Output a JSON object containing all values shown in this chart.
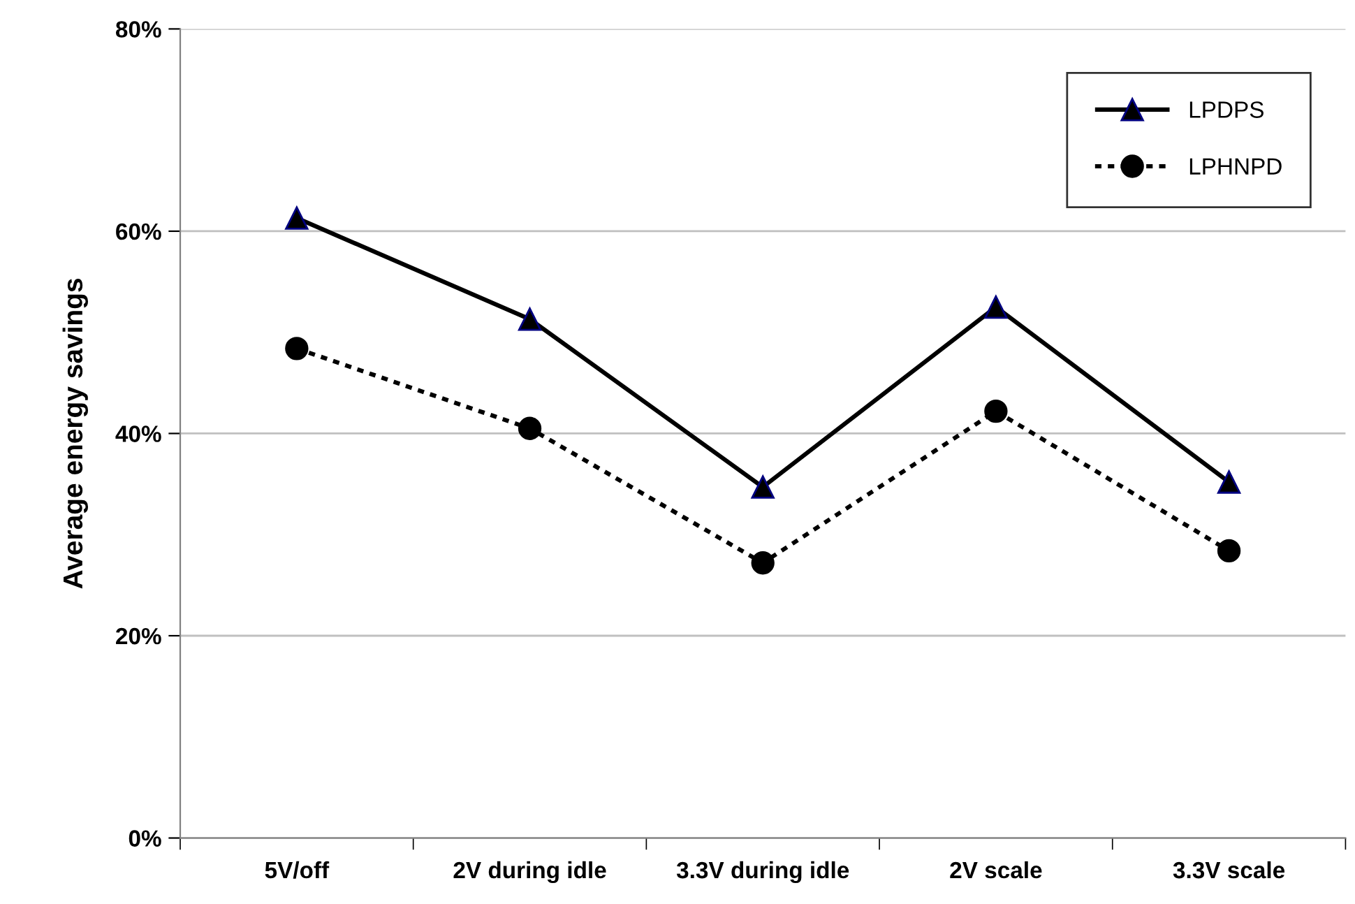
{
  "chart_data": {
    "type": "line",
    "ylabel": "Average energy savings",
    "categories": [
      "5V/off",
      "2V during idle",
      "3.3V during idle",
      "2V scale",
      "3.3V scale"
    ],
    "series": [
      {
        "name": "LPDPS",
        "color": "#000000",
        "values": [
          61.3,
          51.3,
          34.7,
          52.5,
          35.2
        ],
        "marker": "triangle",
        "line_style": "solid"
      },
      {
        "name": "LPHNPD",
        "color": "#000000",
        "values": [
          48.4,
          40.5,
          27.2,
          42.2,
          28.4
        ],
        "marker": "circle",
        "line_style": "dotted"
      }
    ],
    "ylim": [
      0,
      80
    ],
    "yticks": [
      {
        "value": 0,
        "label": "0%"
      },
      {
        "value": 20,
        "label": "20%"
      },
      {
        "value": 40,
        "label": "40%"
      },
      {
        "value": 60,
        "label": "60%"
      },
      {
        "value": 80,
        "label": "80%"
      }
    ],
    "grid": "y",
    "legend": "top right"
  }
}
